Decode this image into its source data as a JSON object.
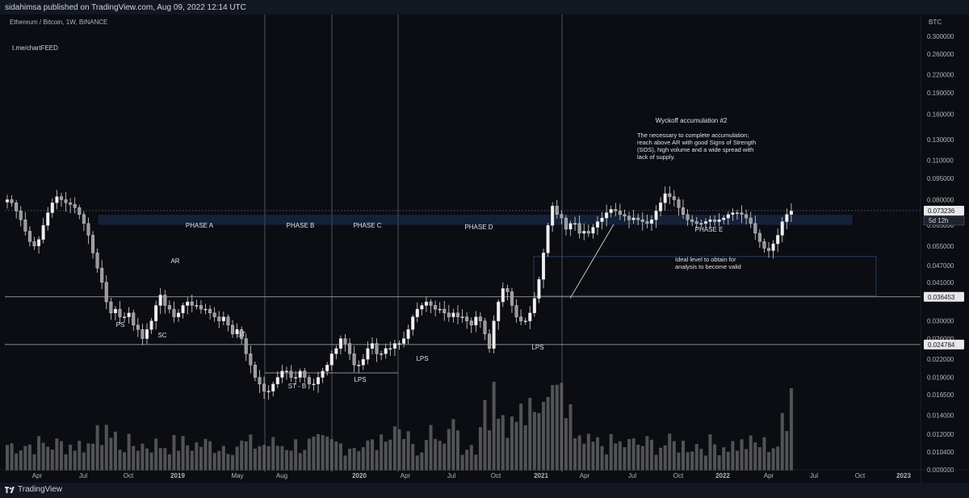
{
  "header": {
    "published": "sidahimsa published on TradingView.com, Aug 09, 2022 12:14 UTC"
  },
  "chart_header": {
    "symbol": "Ethereum / Bitcoin, 1W, BINANCE",
    "note": "t.me/chartFEED",
    "currency": "BTC"
  },
  "footer": {
    "brand": "TradingView"
  },
  "colors": {
    "background": "#0b0d12",
    "candle": "#d9d9d9",
    "volume": "#6b6b6b",
    "grid": "#787b86",
    "zone": "#1e3a66"
  },
  "chart_data": {
    "type": "candlestick",
    "title": "Ethereum / Bitcoin, 1W, BINANCE",
    "y_scale": "log",
    "y_ticks": [
      "0.300000",
      "0.260000",
      "0.220000",
      "0.190000",
      "0.160000",
      "0.130000",
      "0.110000",
      "0.095000",
      "0.080000",
      "0.065000",
      "0.055000",
      "0.047000",
      "0.041000",
      "0.030000",
      "0.026000",
      "0.022000",
      "0.019000",
      "0.016500",
      "0.014000",
      "0.012000",
      "0.010400",
      "0.009000"
    ],
    "x_ticks": [
      "Apr",
      "Jul",
      "Oct",
      "2019",
      "May",
      "Aug",
      "2020",
      "Apr",
      "Jul",
      "Oct",
      "2021",
      "Apr",
      "Jul",
      "Oct",
      "2022",
      "Apr",
      "Jul",
      "Oct",
      "2023"
    ],
    "price_labels": [
      {
        "value": "0.073236",
        "sub": "5d 12h",
        "style": "current"
      },
      {
        "value": "0.036453",
        "style": "level"
      },
      {
        "value": "0.024784",
        "style": "level"
      }
    ],
    "approx_weekly_closes": [
      0.08,
      0.078,
      0.073,
      0.068,
      0.062,
      0.057,
      0.055,
      0.058,
      0.065,
      0.072,
      0.078,
      0.082,
      0.08,
      0.078,
      0.077,
      0.075,
      0.071,
      0.066,
      0.06,
      0.052,
      0.046,
      0.041,
      0.035,
      0.032,
      0.033,
      0.031,
      0.031,
      0.032,
      0.029,
      0.028,
      0.026,
      0.028,
      0.03,
      0.034,
      0.037,
      0.034,
      0.033,
      0.031,
      0.032,
      0.034,
      0.035,
      0.034,
      0.034,
      0.033,
      0.033,
      0.032,
      0.031,
      0.03,
      0.031,
      0.029,
      0.027,
      0.028,
      0.026,
      0.023,
      0.021,
      0.019,
      0.018,
      0.017,
      0.017,
      0.018,
      0.019,
      0.02,
      0.02,
      0.019,
      0.019,
      0.02,
      0.019,
      0.018,
      0.018,
      0.019,
      0.02,
      0.021,
      0.023,
      0.024,
      0.026,
      0.025,
      0.023,
      0.021,
      0.021,
      0.022,
      0.024,
      0.025,
      0.023,
      0.023,
      0.024,
      0.024,
      0.025,
      0.025,
      0.026,
      0.028,
      0.031,
      0.033,
      0.034,
      0.035,
      0.034,
      0.033,
      0.033,
      0.032,
      0.031,
      0.032,
      0.031,
      0.031,
      0.03,
      0.029,
      0.031,
      0.03,
      0.027,
      0.024,
      0.03,
      0.035,
      0.039,
      0.038,
      0.034,
      0.031,
      0.03,
      0.03,
      0.032,
      0.036,
      0.042,
      0.052,
      0.065,
      0.076,
      0.071,
      0.069,
      0.063,
      0.066,
      0.066,
      0.061,
      0.062,
      0.061,
      0.064,
      0.067,
      0.069,
      0.072,
      0.074,
      0.073,
      0.071,
      0.07,
      0.068,
      0.069,
      0.068,
      0.067,
      0.066,
      0.068,
      0.073,
      0.078,
      0.084,
      0.082,
      0.08,
      0.075,
      0.071,
      0.068,
      0.067,
      0.066,
      0.066,
      0.067,
      0.068,
      0.067,
      0.068,
      0.069,
      0.071,
      0.072,
      0.072,
      0.071,
      0.069,
      0.066,
      0.061,
      0.057,
      0.054,
      0.053,
      0.056,
      0.06,
      0.067,
      0.071,
      0.073
    ],
    "annotations": [
      {
        "text": "PHASE A"
      },
      {
        "text": "PHASE B"
      },
      {
        "text": "PHASE C"
      },
      {
        "text": "PHASE D"
      },
      {
        "text": "PHASE E"
      },
      {
        "text": "AR"
      },
      {
        "text": "PS"
      },
      {
        "text": "SC"
      },
      {
        "text": "ST"
      },
      {
        "text": "ST - B"
      },
      {
        "text": "LPS"
      },
      {
        "text": "LPS"
      },
      {
        "text": "LPS"
      },
      {
        "text": "Wyckoff accumulation #2"
      },
      {
        "text": "The necessary to complete accumulation;"
      },
      {
        "text": "reach above AR with good Signs of Strength"
      },
      {
        "text": "(SOS), high volume and a wide spread with"
      },
      {
        "text": "lack of supply."
      },
      {
        "text": "Ideal level to obtain for"
      },
      {
        "text": "analysis to become valid"
      }
    ]
  }
}
